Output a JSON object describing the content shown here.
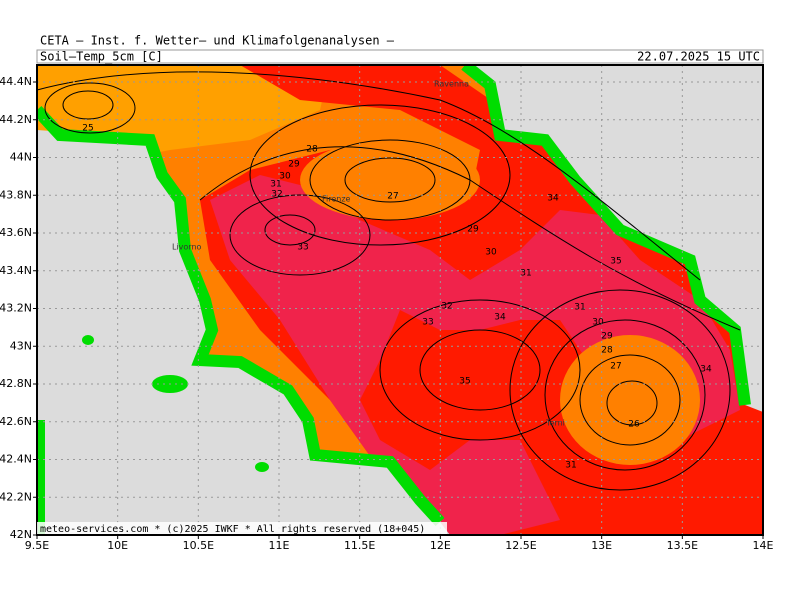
{
  "header": {
    "source": "CETA – Inst. f. Wetter– und Klimafolgenanalysen –",
    "field": "Soil–Temp_5cm [C]",
    "valid": "22.07.2025 15 UTC"
  },
  "axes": {
    "x_ticks": [
      "9.5E",
      "10E",
      "10.5E",
      "11E",
      "11.5E",
      "12E",
      "12.5E",
      "13E",
      "13.5E",
      "14E"
    ],
    "y_ticks": [
      "44.4N",
      "44.2N",
      "44N",
      "43.8N",
      "43.6N",
      "43.4N",
      "43.2N",
      "43N",
      "42.8N",
      "42.6N",
      "42.4N",
      "42.2N",
      "42N"
    ]
  },
  "contour_labels": [
    "25",
    "28",
    "29",
    "30",
    "31",
    "32",
    "33",
    "27",
    "29",
    "30",
    "31",
    "34",
    "35",
    "32",
    "33",
    "34",
    "31",
    "30",
    "29",
    "28",
    "27",
    "34",
    "35",
    "26",
    "31"
  ],
  "cities": [
    "Ravenna",
    "Firenze",
    "Livorno",
    "Terni"
  ],
  "footer": "meteo-services.com * (c)2025 IWKF * All rights reserved (18+045)"
}
